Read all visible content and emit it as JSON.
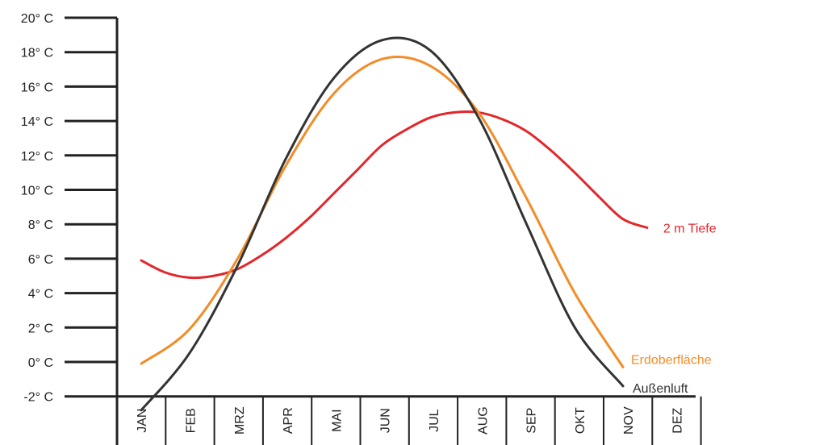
{
  "chart_data": {
    "type": "line",
    "y_ticks": [
      -2,
      0,
      2,
      4,
      6,
      8,
      10,
      12,
      14,
      16,
      18,
      20
    ],
    "y_tick_labels": [
      "-2° C",
      "0° C",
      "2° C",
      "4° C",
      "6° C",
      "8° C",
      "10° C",
      "12° C",
      "14° C",
      "16° C",
      "18° C",
      "20° C"
    ],
    "ylim": [
      -2,
      20
    ],
    "categories": [
      "JAN",
      "FEB",
      "MRZ",
      "APR",
      "MAI",
      "JUN",
      "JUL",
      "AUG",
      "SEP",
      "OKT",
      "NOV",
      "DEZ"
    ],
    "grid": false,
    "series": [
      {
        "name": "2 m Tiefe",
        "color": "#e3262a",
        "points": [
          [
            0,
            5.9
          ],
          [
            0.5,
            5.2
          ],
          [
            1,
            4.9
          ],
          [
            1.5,
            5.0
          ],
          [
            2,
            5.4
          ],
          [
            2.5,
            6.2
          ],
          [
            3,
            7.2
          ],
          [
            3.5,
            8.4
          ],
          [
            4,
            9.8
          ],
          [
            4.5,
            11.2
          ],
          [
            5,
            12.6
          ],
          [
            5.5,
            13.5
          ],
          [
            6,
            14.2
          ],
          [
            6.5,
            14.5
          ],
          [
            7,
            14.5
          ],
          [
            7.5,
            14.1
          ],
          [
            8,
            13.4
          ],
          [
            8.5,
            12.3
          ],
          [
            9,
            11.0
          ],
          [
            9.5,
            9.6
          ],
          [
            10,
            8.3
          ],
          [
            10.5,
            7.8
          ]
        ]
      },
      {
        "name": "Erdoberfläche",
        "color": "#f28c28",
        "points": [
          [
            0,
            -0.1
          ],
          [
            1,
            1.9
          ],
          [
            2,
            6.0
          ],
          [
            3,
            11.4
          ],
          [
            4,
            15.6
          ],
          [
            5,
            17.6
          ],
          [
            6,
            17.2
          ],
          [
            7,
            14.5
          ],
          [
            8,
            9.5
          ],
          [
            9,
            4.0
          ],
          [
            10,
            -0.3
          ]
        ]
      },
      {
        "name": "Außenluft",
        "color": "#333333",
        "points": [
          [
            0,
            -2.8
          ],
          [
            1,
            0.5
          ],
          [
            2,
            5.6
          ],
          [
            3,
            11.8
          ],
          [
            4,
            16.5
          ],
          [
            5,
            18.7
          ],
          [
            6,
            18.1
          ],
          [
            7,
            14.2
          ],
          [
            8,
            8.0
          ],
          [
            9,
            2.0
          ],
          [
            10,
            -1.4
          ]
        ]
      }
    ]
  }
}
